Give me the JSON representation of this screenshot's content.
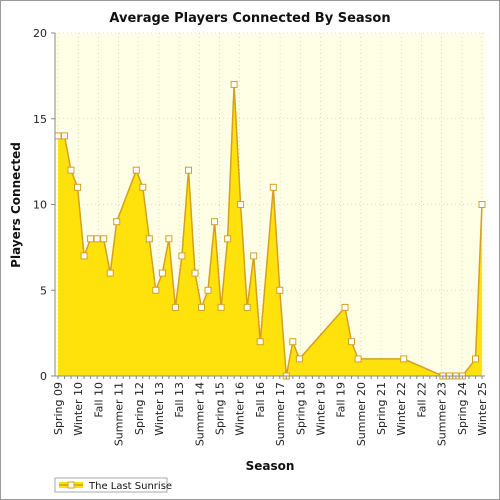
{
  "chart_data": {
    "type": "area",
    "title": "Average Players Connected By Season",
    "xlabel": "Season",
    "ylabel": "Players Connected",
    "ylim": [
      0,
      20
    ],
    "yticks": [
      0,
      5,
      10,
      15,
      20
    ],
    "grid": true,
    "legend_position": "bottom-left",
    "category_tick_labels": [
      "Spring 09",
      "Winter 10",
      "Fall 10",
      "Summer 11",
      "Spring 12",
      "Winter 13",
      "Fall 13",
      "Summer 14",
      "Spring 15",
      "Winter 16",
      "Fall 16",
      "Summer 17",
      "Spring 18",
      "Winter 19",
      "Fall 19",
      "Summer 20",
      "Spring 21",
      "Winter 22",
      "Fall 22",
      "Summer 23",
      "Spring 24",
      "Winter 25"
    ],
    "series": [
      {
        "name": "The Last Sunrise",
        "points": [
          {
            "x": 0.0,
            "y": 14
          },
          {
            "x": 0.5,
            "y": 14
          },
          {
            "x": 1.0,
            "y": 12
          },
          {
            "x": 1.5,
            "y": 11
          },
          {
            "x": 2.0,
            "y": 7
          },
          {
            "x": 2.5,
            "y": 8
          },
          {
            "x": 3.0,
            "y": 8
          },
          {
            "x": 3.5,
            "y": 8
          },
          {
            "x": 4.0,
            "y": 6
          },
          {
            "x": 4.5,
            "y": 9
          },
          {
            "x": 6.0,
            "y": 12
          },
          {
            "x": 6.5,
            "y": 11
          },
          {
            "x": 7.0,
            "y": 8
          },
          {
            "x": 7.5,
            "y": 5
          },
          {
            "x": 8.0,
            "y": 6
          },
          {
            "x": 8.5,
            "y": 8
          },
          {
            "x": 9.0,
            "y": 4
          },
          {
            "x": 9.5,
            "y": 7
          },
          {
            "x": 10.0,
            "y": 12
          },
          {
            "x": 10.5,
            "y": 6
          },
          {
            "x": 11.0,
            "y": 4
          },
          {
            "x": 11.5,
            "y": 5
          },
          {
            "x": 12.0,
            "y": 9
          },
          {
            "x": 12.5,
            "y": 4
          },
          {
            "x": 13.0,
            "y": 8
          },
          {
            "x": 13.5,
            "y": 17
          },
          {
            "x": 14.0,
            "y": 10
          },
          {
            "x": 14.5,
            "y": 4
          },
          {
            "x": 15.0,
            "y": 7
          },
          {
            "x": 15.5,
            "y": 2
          },
          {
            "x": 16.5,
            "y": 11
          },
          {
            "x": 17.0,
            "y": 5
          },
          {
            "x": 17.5,
            "y": 0
          },
          {
            "x": 18.0,
            "y": 2
          },
          {
            "x": 18.5,
            "y": 1
          },
          {
            "x": 22.0,
            "y": 4
          },
          {
            "x": 22.5,
            "y": 2
          },
          {
            "x": 23.0,
            "y": 1
          },
          {
            "x": 26.5,
            "y": 1
          },
          {
            "x": 29.5,
            "y": 0
          },
          {
            "x": 30.0,
            "y": 0
          },
          {
            "x": 30.5,
            "y": 0
          },
          {
            "x": 31.0,
            "y": 0
          },
          {
            "x": 32.0,
            "y": 1
          },
          {
            "x": 32.5,
            "y": 10
          }
        ]
      }
    ],
    "colors": {
      "plot_background": "#ffffe6",
      "area_fill": "#ffe000",
      "area_fill_light": "#fff8b0",
      "line": "#d4a020",
      "marker_fill": "#ffffff",
      "grid": "#c8c8a0"
    }
  }
}
